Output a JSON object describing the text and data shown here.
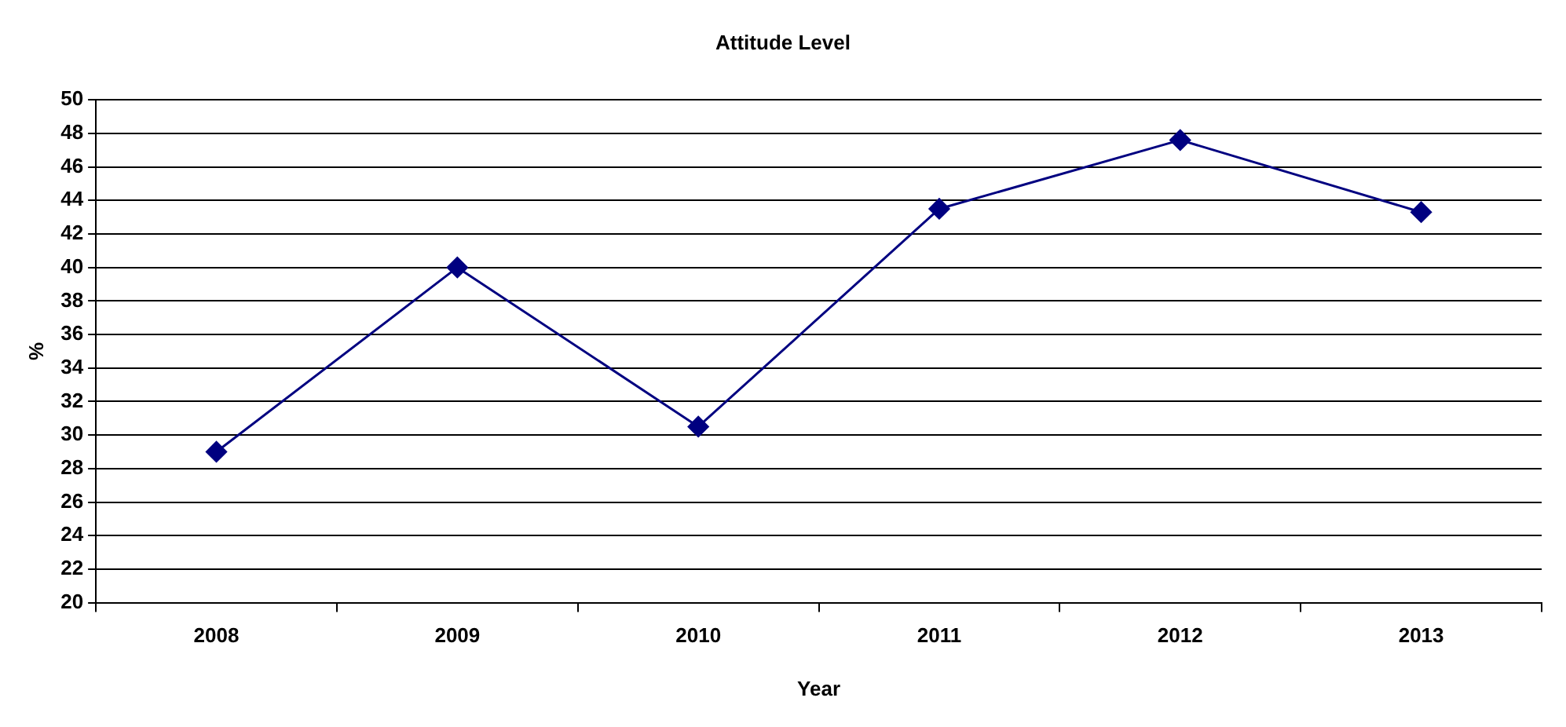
{
  "chart_data": {
    "type": "line",
    "title": "Attitude Level",
    "xlabel": "Year",
    "ylabel": "%",
    "categories": [
      "2008",
      "2009",
      "2010",
      "2011",
      "2012",
      "2013"
    ],
    "series": [
      {
        "color": "#000080",
        "values": [
          29,
          40,
          30.5,
          43.5,
          47.6,
          43.3
        ]
      }
    ],
    "ylim": [
      20,
      50
    ],
    "yticks": [
      20,
      22,
      24,
      26,
      28,
      30,
      32,
      34,
      36,
      38,
      40,
      42,
      44,
      46,
      48,
      50
    ],
    "grid": "y",
    "legend": false,
    "marker": "diamond",
    "line_style": "solid"
  }
}
